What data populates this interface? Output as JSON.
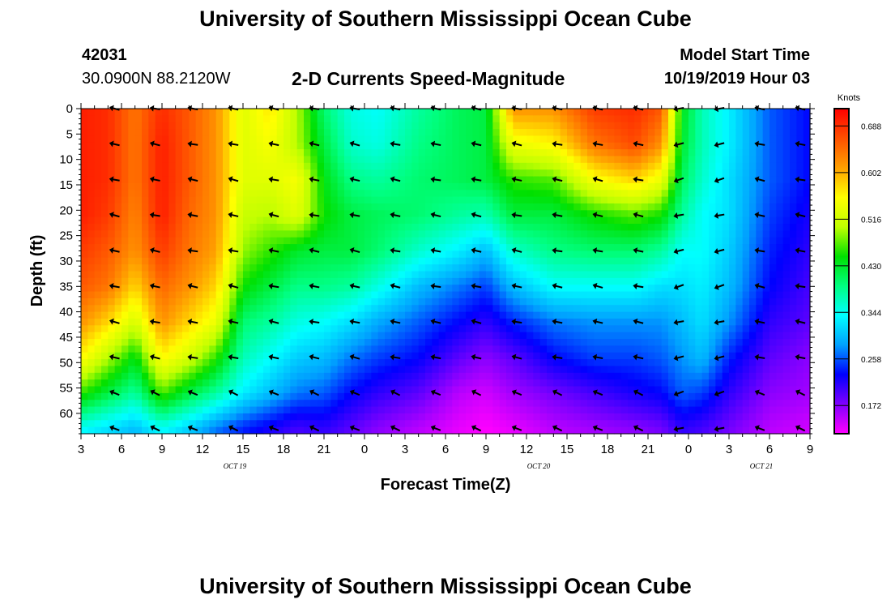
{
  "header": {
    "title": "University of Southern Mississippi Ocean Cube",
    "station_id": "42031",
    "coordinates": "30.0900N 88.2120W",
    "plot_title": "2-D Currents Speed-Magnitude",
    "model_start_label": "Model Start Time",
    "model_start_value": "10/19/2019 Hour 03"
  },
  "footer": {
    "title": "University of Southern Mississippi Ocean Cube"
  },
  "chart_data": {
    "type": "heatmap",
    "variable": "current speed magnitude",
    "xlabel": "Forecast Time(Z)",
    "ylabel": "Depth (ft)",
    "x_range_hours": [
      0,
      54
    ],
    "x_ticks": [
      {
        "hour": 0,
        "label": "3"
      },
      {
        "hour": 3,
        "label": "6"
      },
      {
        "hour": 6,
        "label": "9"
      },
      {
        "hour": 9,
        "label": "12"
      },
      {
        "hour": 12,
        "label": "15"
      },
      {
        "hour": 15,
        "label": "18"
      },
      {
        "hour": 18,
        "label": "21"
      },
      {
        "hour": 21,
        "label": "0"
      },
      {
        "hour": 24,
        "label": "3"
      },
      {
        "hour": 27,
        "label": "6"
      },
      {
        "hour": 30,
        "label": "9"
      },
      {
        "hour": 33,
        "label": "12"
      },
      {
        "hour": 36,
        "label": "15"
      },
      {
        "hour": 39,
        "label": "18"
      },
      {
        "hour": 42,
        "label": "21"
      },
      {
        "hour": 45,
        "label": "0"
      },
      {
        "hour": 48,
        "label": "3"
      },
      {
        "hour": 51,
        "label": "6"
      },
      {
        "hour": 54,
        "label": "9"
      }
    ],
    "date_labels": [
      {
        "hour": 10.5,
        "label": "OCT 19"
      },
      {
        "hour": 33,
        "label": "OCT 20"
      },
      {
        "hour": 49.5,
        "label": "OCT 21"
      }
    ],
    "y_range": [
      0,
      64
    ],
    "y_reversed": true,
    "y_ticks": [
      0,
      5,
      10,
      15,
      20,
      25,
      30,
      35,
      40,
      45,
      50,
      55,
      60
    ],
    "colorbar": {
      "unit": "Knots",
      "range": [
        0.12,
        0.72
      ],
      "tick_values": [
        0.688,
        0.602,
        0.516,
        0.43,
        0.344,
        0.258,
        0.172
      ],
      "tick_labels": [
        "0.688",
        "0.602",
        "0.516",
        "0.430",
        "0.344",
        "0.258",
        "0.172"
      ],
      "colors": [
        "#ff00ff",
        "#8000ff",
        "#0000ff",
        "#00a0ff",
        "#00ffff",
        "#00ff80",
        "#00e000",
        "#c0ff00",
        "#ffff00",
        "#ffa000",
        "#ff5000",
        "#ff0000"
      ]
    },
    "arrow_times_hours": [
      2.5,
      5.5,
      8.3,
      11.3,
      14.3,
      17.3,
      20.3,
      23.3,
      26.3,
      29.3,
      32.3,
      35.3,
      38.3,
      41.3,
      44.3,
      47.3,
      50.3,
      53.3
    ],
    "arrow_depths_ft": [
      0,
      7,
      14,
      21,
      28,
      35,
      42,
      49,
      56,
      63
    ],
    "speed_keyframes": [
      {
        "hour": 0,
        "speed": [
          0.7,
          0.7,
          0.7,
          0.7,
          0.68,
          0.66,
          0.62,
          0.56,
          0.46,
          0.34
        ]
      },
      {
        "hour": 2,
        "speed": [
          0.69,
          0.69,
          0.69,
          0.68,
          0.66,
          0.64,
          0.58,
          0.5,
          0.42,
          0.32
        ]
      },
      {
        "hour": 4,
        "speed": [
          0.64,
          0.64,
          0.64,
          0.63,
          0.62,
          0.58,
          0.52,
          0.44,
          0.38,
          0.3
        ]
      },
      {
        "hour": 6,
        "speed": [
          0.69,
          0.7,
          0.7,
          0.7,
          0.68,
          0.65,
          0.62,
          0.56,
          0.47,
          0.34
        ]
      },
      {
        "hour": 8,
        "speed": [
          0.66,
          0.66,
          0.66,
          0.65,
          0.64,
          0.62,
          0.58,
          0.52,
          0.42,
          0.31
        ]
      },
      {
        "hour": 10,
        "speed": [
          0.62,
          0.62,
          0.62,
          0.62,
          0.61,
          0.58,
          0.54,
          0.46,
          0.38,
          0.27
        ]
      },
      {
        "hour": 12,
        "speed": [
          0.53,
          0.53,
          0.53,
          0.51,
          0.49,
          0.45,
          0.4,
          0.37,
          0.33,
          0.24
        ]
      },
      {
        "hour": 14,
        "speed": [
          0.57,
          0.55,
          0.53,
          0.5,
          0.46,
          0.42,
          0.38,
          0.34,
          0.3,
          0.22
        ]
      },
      {
        "hour": 16,
        "speed": [
          0.5,
          0.5,
          0.55,
          0.53,
          0.43,
          0.39,
          0.35,
          0.31,
          0.27,
          0.2
        ]
      },
      {
        "hour": 18,
        "speed": [
          0.4,
          0.42,
          0.44,
          0.45,
          0.42,
          0.39,
          0.34,
          0.3,
          0.26,
          0.21
        ]
      },
      {
        "hour": 20,
        "speed": [
          0.35,
          0.36,
          0.39,
          0.42,
          0.42,
          0.38,
          0.32,
          0.27,
          0.23,
          0.19
        ]
      },
      {
        "hour": 22,
        "speed": [
          0.34,
          0.35,
          0.38,
          0.41,
          0.4,
          0.35,
          0.29,
          0.25,
          0.21,
          0.17
        ]
      },
      {
        "hour": 25,
        "speed": [
          0.38,
          0.39,
          0.4,
          0.4,
          0.36,
          0.3,
          0.26,
          0.23,
          0.19,
          0.15
        ]
      },
      {
        "hour": 28,
        "speed": [
          0.41,
          0.41,
          0.41,
          0.38,
          0.33,
          0.27,
          0.23,
          0.19,
          0.15,
          0.13
        ]
      },
      {
        "hour": 30,
        "speed": [
          0.42,
          0.42,
          0.42,
          0.37,
          0.3,
          0.25,
          0.21,
          0.17,
          0.14,
          0.12
        ]
      },
      {
        "hour": 32,
        "speed": [
          0.62,
          0.54,
          0.46,
          0.42,
          0.36,
          0.3,
          0.24,
          0.19,
          0.16,
          0.13
        ]
      },
      {
        "hour": 35,
        "speed": [
          0.62,
          0.56,
          0.47,
          0.42,
          0.39,
          0.34,
          0.27,
          0.23,
          0.18,
          0.15
        ]
      },
      {
        "hour": 38,
        "speed": [
          0.68,
          0.64,
          0.55,
          0.45,
          0.4,
          0.34,
          0.28,
          0.25,
          0.2,
          0.16
        ]
      },
      {
        "hour": 41,
        "speed": [
          0.69,
          0.67,
          0.58,
          0.47,
          0.4,
          0.34,
          0.28,
          0.25,
          0.22,
          0.17
        ]
      },
      {
        "hour": 43,
        "speed": [
          0.66,
          0.62,
          0.54,
          0.45,
          0.38,
          0.32,
          0.28,
          0.26,
          0.23,
          0.18
        ]
      },
      {
        "hour": 44.5,
        "speed": [
          0.44,
          0.43,
          0.41,
          0.38,
          0.34,
          0.32,
          0.3,
          0.28,
          0.26,
          0.21
        ]
      },
      {
        "hour": 46,
        "speed": [
          0.37,
          0.37,
          0.36,
          0.34,
          0.34,
          0.33,
          0.32,
          0.3,
          0.25,
          0.2
        ]
      },
      {
        "hour": 48,
        "speed": [
          0.33,
          0.33,
          0.32,
          0.32,
          0.31,
          0.3,
          0.28,
          0.24,
          0.21,
          0.18
        ]
      },
      {
        "hour": 51,
        "speed": [
          0.26,
          0.26,
          0.26,
          0.25,
          0.24,
          0.23,
          0.21,
          0.19,
          0.17,
          0.15
        ]
      },
      {
        "hour": 54,
        "speed": [
          0.23,
          0.23,
          0.23,
          0.22,
          0.21,
          0.2,
          0.19,
          0.17,
          0.16,
          0.14
        ]
      }
    ]
  }
}
